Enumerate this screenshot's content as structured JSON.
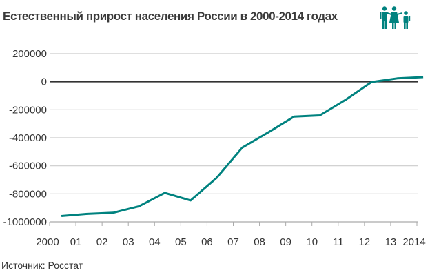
{
  "title": "Естественный прирост населения России в 2000-2014 годах",
  "icon": "family-icon",
  "source": "Источник: Росстат",
  "colors": {
    "line": "#00827f",
    "zero_line": "#333333",
    "grid": "#cccccc",
    "text": "#333333",
    "icon": "#00827f"
  },
  "chart_data": {
    "type": "line",
    "title": "Естественный прирост населения России в 2000-2014 годах",
    "xlabel": "",
    "ylabel": "",
    "categories": [
      "2000",
      "01",
      "02",
      "03",
      "04",
      "05",
      "06",
      "07",
      "08",
      "09",
      "10",
      "11",
      "12",
      "13",
      "2014"
    ],
    "x": [
      2000,
      2001,
      2002,
      2003,
      2004,
      2005,
      2006,
      2007,
      2008,
      2009,
      2010,
      2011,
      2012,
      2013,
      2014
    ],
    "series": [
      {
        "name": "Естественный прирост",
        "values": [
          -958000,
          -943000,
          -935000,
          -889000,
          -793000,
          -847000,
          -687000,
          -470000,
          -362000,
          -249000,
          -240000,
          -129000,
          -2000,
          24000,
          33000
        ]
      }
    ],
    "y_ticks": [
      200000,
      0,
      -200000,
      -400000,
      -600000,
      -800000,
      -1000000
    ],
    "y_tick_labels": [
      "200000",
      "0",
      "-200000",
      "-400000",
      "-600000",
      "-800000",
      "-1000000"
    ],
    "ylim": [
      -1000000,
      200000
    ],
    "grid": true,
    "legend": "none"
  }
}
